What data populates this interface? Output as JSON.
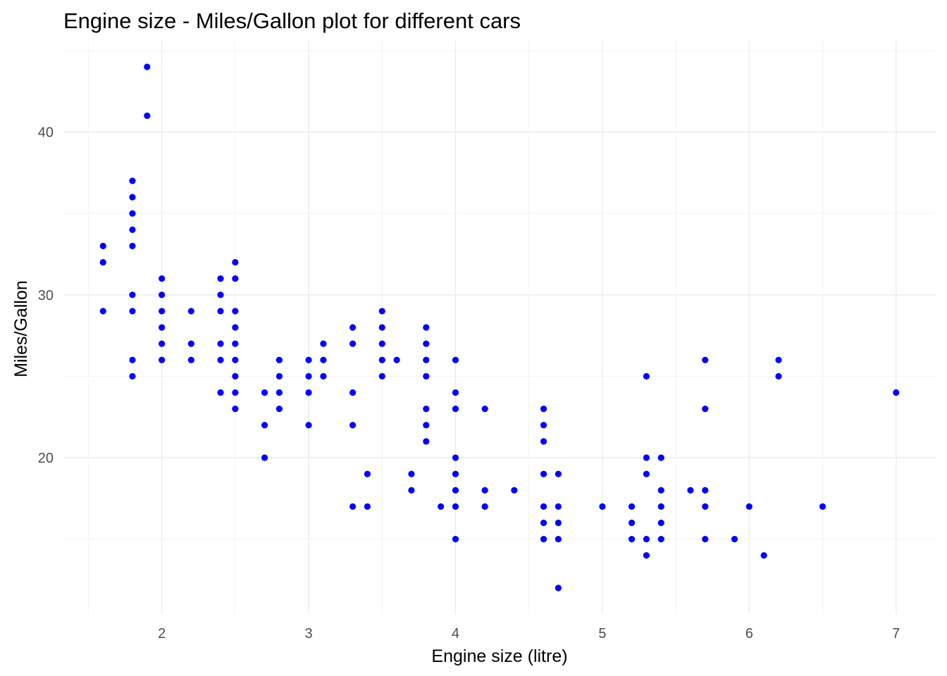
{
  "chart_data": {
    "type": "scatter",
    "title": "Engine size - Miles/Gallon plot for different cars",
    "xlabel": "Engine size (litre)",
    "ylabel": "Miles/Gallon",
    "xlim": [
      1.33,
      7.27
    ],
    "ylim": [
      10.4,
      45.6
    ],
    "xticks": [
      2,
      3,
      4,
      5,
      6,
      7
    ],
    "yticks": [
      20,
      30,
      40
    ],
    "xminor": [
      1.5,
      2.5,
      3.5,
      4.5,
      5.5,
      6.5
    ],
    "yminor": [
      15,
      25,
      35,
      45
    ],
    "grid": true,
    "legend": "none",
    "point_color": "#0000ff",
    "points": [
      [
        1.6,
        33
      ],
      [
        1.6,
        32
      ],
      [
        1.6,
        29
      ],
      [
        1.8,
        37
      ],
      [
        1.8,
        36
      ],
      [
        1.8,
        35
      ],
      [
        1.8,
        34
      ],
      [
        1.8,
        33
      ],
      [
        1.8,
        30
      ],
      [
        1.8,
        29
      ],
      [
        1.8,
        26
      ],
      [
        1.8,
        25
      ],
      [
        1.9,
        44
      ],
      [
        1.9,
        41
      ],
      [
        2.0,
        31
      ],
      [
        2.0,
        30
      ],
      [
        2.0,
        29
      ],
      [
        2.0,
        28
      ],
      [
        2.0,
        27
      ],
      [
        2.0,
        26
      ],
      [
        2.2,
        29
      ],
      [
        2.2,
        27
      ],
      [
        2.2,
        26
      ],
      [
        2.4,
        31
      ],
      [
        2.4,
        30
      ],
      [
        2.4,
        29
      ],
      [
        2.4,
        27
      ],
      [
        2.4,
        26
      ],
      [
        2.4,
        24
      ],
      [
        2.5,
        32
      ],
      [
        2.5,
        31
      ],
      [
        2.5,
        29
      ],
      [
        2.5,
        28
      ],
      [
        2.5,
        27
      ],
      [
        2.5,
        26
      ],
      [
        2.5,
        25
      ],
      [
        2.5,
        24
      ],
      [
        2.5,
        23
      ],
      [
        2.7,
        24
      ],
      [
        2.7,
        22
      ],
      [
        2.7,
        20
      ],
      [
        2.8,
        26
      ],
      [
        2.8,
        25
      ],
      [
        2.8,
        24
      ],
      [
        2.8,
        23
      ],
      [
        3.0,
        26
      ],
      [
        3.0,
        25
      ],
      [
        3.0,
        24
      ],
      [
        3.0,
        22
      ],
      [
        3.1,
        27
      ],
      [
        3.1,
        26
      ],
      [
        3.1,
        25
      ],
      [
        3.3,
        28
      ],
      [
        3.3,
        27
      ],
      [
        3.3,
        24
      ],
      [
        3.3,
        22
      ],
      [
        3.3,
        17
      ],
      [
        3.4,
        19
      ],
      [
        3.4,
        17
      ],
      [
        3.5,
        29
      ],
      [
        3.5,
        28
      ],
      [
        3.5,
        27
      ],
      [
        3.5,
        26
      ],
      [
        3.5,
        25
      ],
      [
        3.6,
        26
      ],
      [
        3.7,
        19
      ],
      [
        3.7,
        18
      ],
      [
        3.8,
        28
      ],
      [
        3.8,
        27
      ],
      [
        3.8,
        26
      ],
      [
        3.8,
        25
      ],
      [
        3.8,
        23
      ],
      [
        3.8,
        22
      ],
      [
        3.8,
        21
      ],
      [
        3.9,
        17
      ],
      [
        4.0,
        26
      ],
      [
        4.0,
        24
      ],
      [
        4.0,
        23
      ],
      [
        4.0,
        20
      ],
      [
        4.0,
        19
      ],
      [
        4.0,
        18
      ],
      [
        4.0,
        17
      ],
      [
        4.0,
        15
      ],
      [
        4.2,
        23
      ],
      [
        4.2,
        18
      ],
      [
        4.2,
        17
      ],
      [
        4.4,
        18
      ],
      [
        4.6,
        23
      ],
      [
        4.6,
        22
      ],
      [
        4.6,
        21
      ],
      [
        4.6,
        19
      ],
      [
        4.6,
        17
      ],
      [
        4.6,
        16
      ],
      [
        4.6,
        15
      ],
      [
        4.7,
        19
      ],
      [
        4.7,
        17
      ],
      [
        4.7,
        16
      ],
      [
        4.7,
        15
      ],
      [
        4.7,
        12
      ],
      [
        5.0,
        17
      ],
      [
        5.2,
        17
      ],
      [
        5.2,
        16
      ],
      [
        5.2,
        15
      ],
      [
        5.3,
        25
      ],
      [
        5.3,
        20
      ],
      [
        5.3,
        19
      ],
      [
        5.3,
        15
      ],
      [
        5.3,
        14
      ],
      [
        5.4,
        20
      ],
      [
        5.4,
        18
      ],
      [
        5.4,
        17
      ],
      [
        5.4,
        16
      ],
      [
        5.4,
        15
      ],
      [
        5.6,
        18
      ],
      [
        5.7,
        26
      ],
      [
        5.7,
        23
      ],
      [
        5.7,
        18
      ],
      [
        5.7,
        17
      ],
      [
        5.7,
        15
      ],
      [
        5.9,
        15
      ],
      [
        6.0,
        17
      ],
      [
        6.1,
        14
      ],
      [
        6.2,
        26
      ],
      [
        6.2,
        25
      ],
      [
        6.5,
        17
      ],
      [
        7.0,
        24
      ]
    ]
  }
}
